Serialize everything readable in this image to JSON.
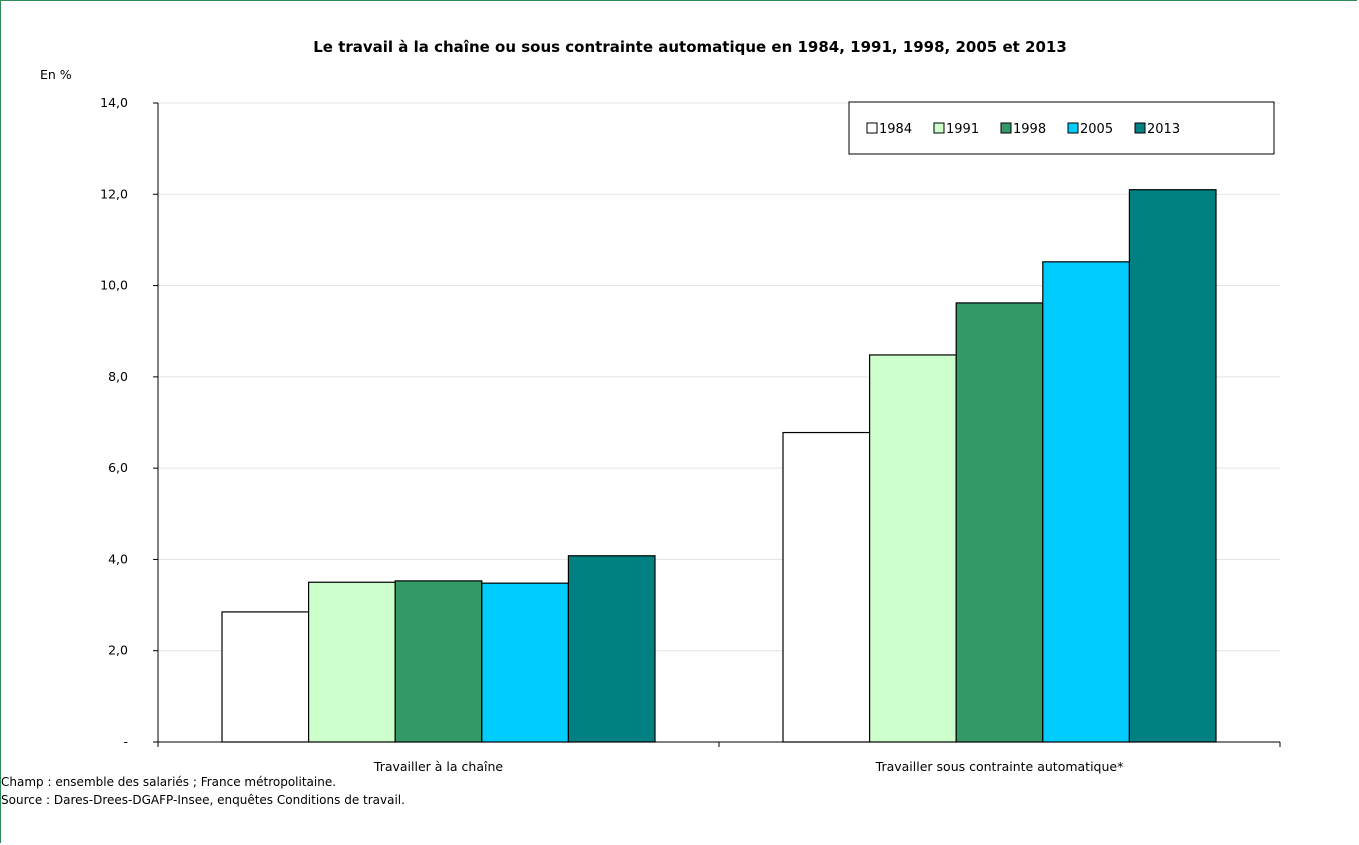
{
  "chart_data": {
    "type": "bar",
    "title": "Le travail à la chaîne ou sous contrainte automatique en 1984, 1991, 1998, 2005 et 2013",
    "ylabel": "En %",
    "xlabel": "",
    "ylim": [
      0,
      14
    ],
    "yticks": [
      0,
      2,
      4,
      6,
      8,
      10,
      12,
      14
    ],
    "ytick_labels": [
      "-",
      "2,0",
      "4,0",
      "6,0",
      "8,0",
      "10,0",
      "12,0",
      "14,0"
    ],
    "categories": [
      "Travailler à la chaîne",
      "Travailler sous contrainte automatique*"
    ],
    "series": [
      {
        "name": "1984",
        "color": "#ffffff",
        "values": [
          2.85,
          6.78
        ]
      },
      {
        "name": "1991",
        "color": "#ccffcc",
        "values": [
          3.5,
          8.48
        ]
      },
      {
        "name": "1998",
        "color": "#339966",
        "values": [
          3.53,
          9.62
        ]
      },
      {
        "name": "2005",
        "color": "#00ccff",
        "values": [
          3.48,
          10.52
        ]
      },
      {
        "name": "2013",
        "color": "#008080",
        "values": [
          4.08,
          12.1
        ]
      }
    ],
    "grid": true,
    "legend_position": "top-right"
  },
  "notes": {
    "champ": "Champ : ensemble des salariés ; France métropolitaine.",
    "source": "Source : Dares-Drees-DGAFP-Insee, enquêtes Conditions de travail."
  }
}
